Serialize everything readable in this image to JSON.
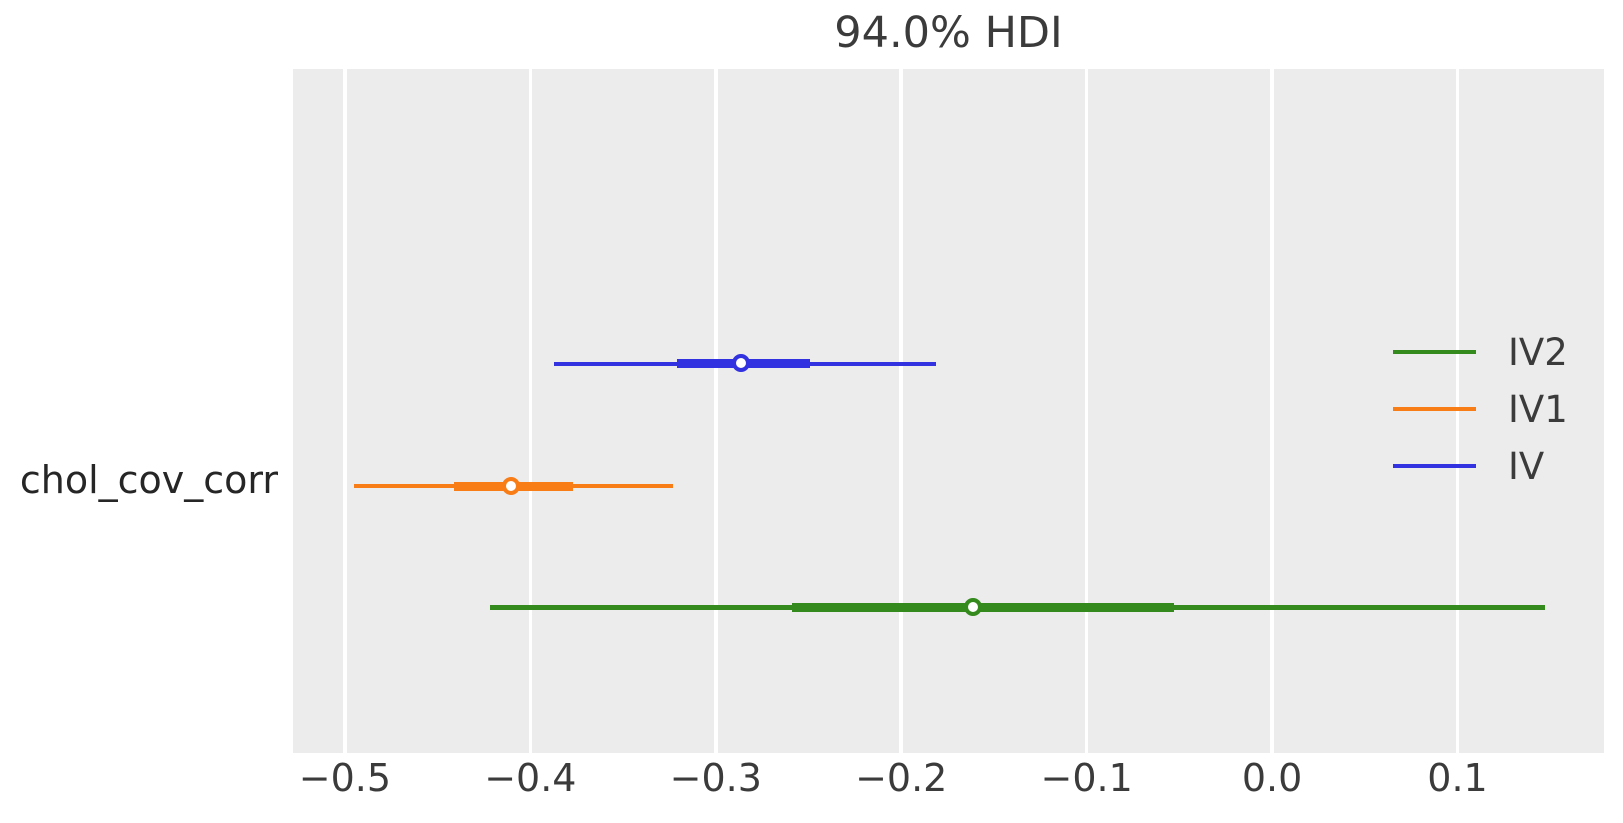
{
  "title": "94.0% HDI",
  "chart_data": {
    "type": "forest_interval",
    "title": "94.0% HDI",
    "xlabel": "",
    "ylabel": "",
    "y_tick_labels": [
      "chol_cov_corr"
    ],
    "x_ticks": [
      -0.5,
      -0.4,
      -0.3,
      -0.2,
      -0.1,
      0.0,
      0.1
    ],
    "x_tick_labels": [
      "−0.5",
      "−0.4",
      "−0.3",
      "−0.2",
      "−0.1",
      "0.0",
      "0.1"
    ],
    "xlim": [
      -0.528,
      0.179
    ],
    "grid": "vertical-white-lines-on-gray",
    "hdi_prob": 0.94,
    "series": [
      {
        "name": "IV",
        "color": "#3232e1",
        "row_frac": 0.431,
        "hdi": [
          -0.387,
          -0.181
        ],
        "quartile": [
          -0.321,
          -0.249
        ],
        "median": -0.286
      },
      {
        "name": "IV1",
        "color": "#f97d16",
        "row_frac": 0.61,
        "hdi": [
          -0.495,
          -0.323
        ],
        "quartile": [
          -0.441,
          -0.377
        ],
        "median": -0.41
      },
      {
        "name": "IV2",
        "color": "#348a1c",
        "row_frac": 0.787,
        "hdi": [
          -0.422,
          0.147
        ],
        "quartile": [
          -0.259,
          -0.053
        ],
        "median": -0.161
      }
    ],
    "legend": {
      "position": "right-inside",
      "entries": [
        {
          "label": "IV2",
          "color": "#348a1c"
        },
        {
          "label": "IV1",
          "color": "#f97d16"
        },
        {
          "label": "IV",
          "color": "#3232e1"
        }
      ]
    },
    "colors": {
      "figure_bg": "#ffffff",
      "plot_bg": "#ececec",
      "gridline": "#ffffff",
      "text": "#3b3b3b",
      "marker_face": "#ffffff"
    }
  }
}
